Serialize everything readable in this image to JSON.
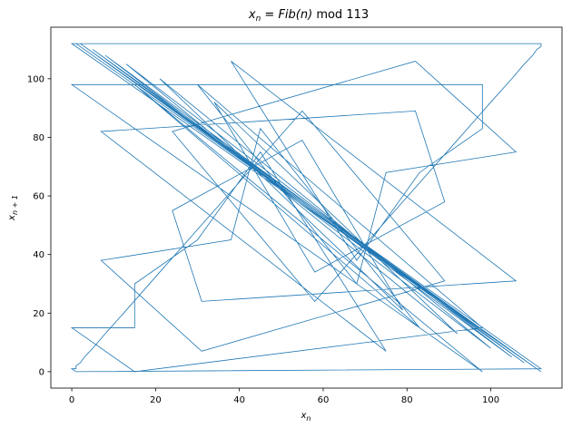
{
  "chart_data": {
    "type": "line",
    "title_main": "x",
    "title_main_sub": "n",
    "title_rest": " = ",
    "title_func": "Fib",
    "title_arg": "(n)",
    "title_mod": " mod 113",
    "xlabel_main": "x",
    "xlabel_sub": "n",
    "ylabel_main": "x",
    "ylabel_sub": "n + 1",
    "xlim": [
      -5,
      117
    ],
    "ylim": [
      -5.6,
      117.6
    ],
    "xticks": [
      0,
      20,
      40,
      60,
      80,
      100
    ],
    "yticks": [
      0,
      20,
      40,
      60,
      80,
      100
    ],
    "grid": false,
    "line_color": "#1f77b4",
    "mod": 113,
    "points": {
      "x": [
        0,
        1,
        1,
        2,
        3,
        5,
        8,
        13,
        21,
        34,
        55,
        89,
        31,
        7,
        38,
        45,
        83,
        15,
        98,
        0,
        98,
        98,
        83,
        68,
        38,
        106,
        31,
        24,
        55,
        79,
        21,
        100,
        8,
        108,
        3,
        111,
        1,
        112,
        0,
        112,
        112,
        111,
        110,
        108,
        105,
        100,
        92,
        79,
        58,
        24,
        82,
        106,
        75,
        68,
        30,
        98,
        15,
        0,
        15,
        15,
        30,
        45,
        75,
        7,
        82,
        89,
        58,
        34,
        92,
        13,
        105,
        5,
        110,
        2,
        112,
        1,
        0,
        1,
        1,
        2,
        3,
        5,
        8,
        13,
        21,
        34,
        55,
        89,
        31,
        7,
        38,
        45,
        83,
        15,
        98,
        0,
        98,
        98,
        83,
        68,
        38,
        106,
        31,
        24,
        55,
        79,
        21,
        100,
        8,
        108,
        3,
        111,
        1,
        112,
        0,
        112,
        112,
        111,
        110,
        108,
        105,
        100,
        92,
        79,
        58,
        24,
        82,
        106,
        75,
        68,
        30,
        98,
        15,
        0,
        15,
        15,
        30,
        45,
        75,
        7,
        82,
        89,
        58,
        34,
        92,
        13,
        105,
        5,
        110,
        2,
        112,
        1,
        0
      ],
      "y": [
        1,
        1,
        2,
        3,
        5,
        8,
        13,
        21,
        34,
        55,
        89,
        31,
        7,
        38,
        45,
        83,
        15,
        98,
        0,
        98,
        98,
        83,
        68,
        38,
        106,
        31,
        24,
        55,
        79,
        21,
        100,
        8,
        108,
        3,
        111,
        1,
        112,
        0,
        112,
        112,
        111,
        110,
        108,
        105,
        100,
        92,
        79,
        58,
        24,
        82,
        106,
        75,
        68,
        30,
        98,
        15,
        0,
        15,
        15,
        30,
        45,
        75,
        7,
        82,
        89,
        58,
        34,
        92,
        13,
        105,
        5,
        110,
        2,
        112,
        1,
        0,
        1,
        1,
        2,
        3,
        5,
        8,
        13,
        21,
        34,
        55,
        89,
        31,
        7,
        38,
        45,
        83,
        15,
        98,
        0,
        98,
        98,
        83,
        68,
        38,
        106,
        31,
        24,
        55,
        79,
        21,
        100,
        8,
        108,
        3,
        111,
        1,
        112,
        0,
        112,
        112,
        111,
        110,
        108,
        105,
        100,
        92,
        79,
        58,
        24,
        82,
        106,
        75,
        68,
        30,
        98,
        15,
        0,
        15,
        15,
        30,
        45,
        75,
        7,
        82,
        89,
        58,
        34,
        92,
        13,
        105,
        5,
        110,
        2,
        112,
        1,
        0,
        1
      ]
    }
  }
}
